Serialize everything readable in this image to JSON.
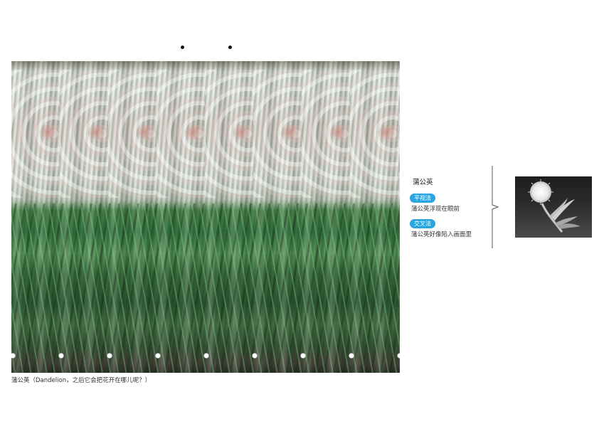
{
  "caption": "蒲公英（Dandelion，之后它会把花开在哪儿呢？）",
  "sidebar": {
    "title": "蒲公英",
    "parallel_label": "平视法",
    "parallel_text": "蒲公英浮现在眼前",
    "cross_label": "交叉法",
    "cross_text": "蒲公英好像陷入画面里"
  },
  "colors": {
    "badge": "#29a6e0"
  },
  "icons": {
    "preview": "dandelion-silhouette-icon",
    "bracket": "right-bracket-icon"
  }
}
